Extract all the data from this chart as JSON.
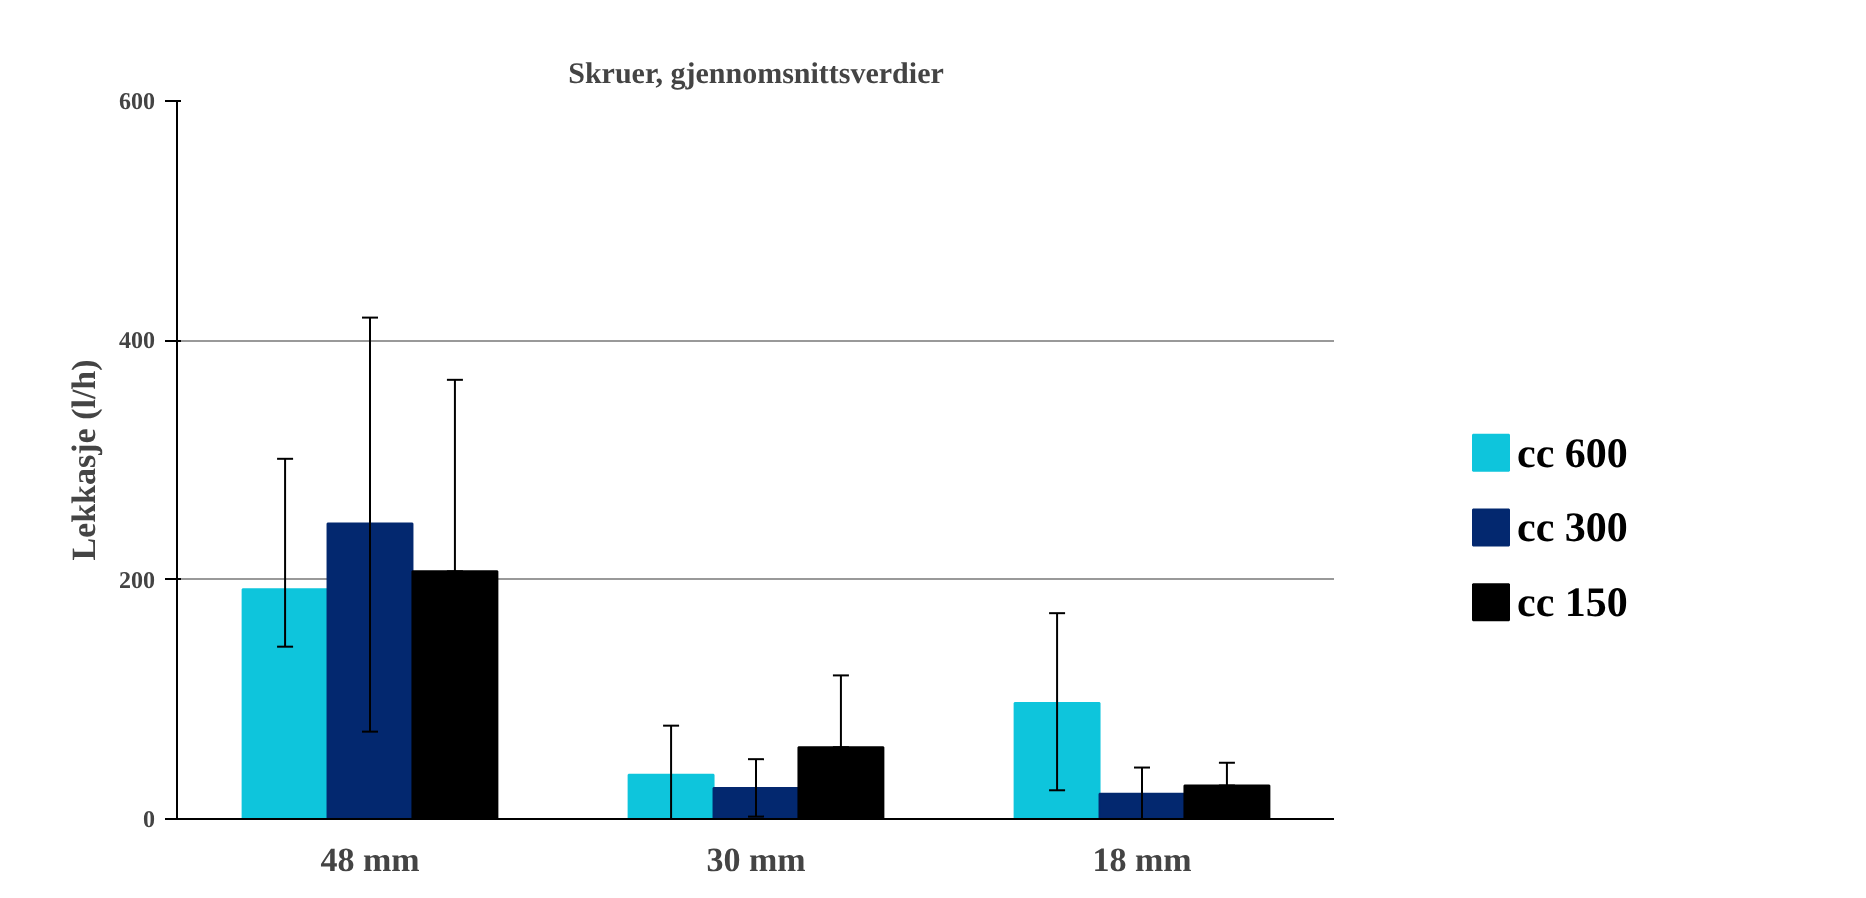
{
  "chart_data": {
    "type": "bar",
    "title": "Skruer, gjennomsnittsverdier",
    "ylabel": "Lekkasje (l/h)",
    "categories": [
      "48 mm",
      "30 mm",
      "18 mm"
    ],
    "series": [
      {
        "name": "cc 600",
        "color": "#0ec5dc",
        "values": [
          192,
          37,
          97
        ],
        "errors": [
          [
            144,
            301
          ],
          [
            0,
            78
          ],
          [
            24,
            172
          ]
        ]
      },
      {
        "name": "cc 300",
        "color": "#03286f",
        "values": [
          247,
          26,
          21
        ],
        "errors": [
          [
            73,
            419
          ],
          [
            2,
            50
          ],
          [
            0,
            43
          ]
        ]
      },
      {
        "name": "cc 150",
        "color": "#000000",
        "values": [
          207,
          60,
          28
        ],
        "errors": [
          [
            207,
            367
          ],
          [
            60,
            120
          ],
          [
            28,
            47
          ]
        ]
      }
    ],
    "ylim": [
      0,
      600
    ],
    "yticks": [
      0,
      200,
      400,
      600
    ],
    "grid": "y",
    "legend": "right"
  }
}
